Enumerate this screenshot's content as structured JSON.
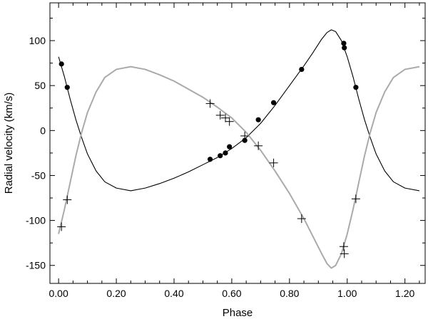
{
  "chart_data": {
    "type": "scatter",
    "xlabel": "Phase",
    "ylabel": "Radial velocity (km/s)",
    "xlim": [
      -0.03,
      1.27
    ],
    "ylim": [
      -170,
      142
    ],
    "xticks": [
      0.0,
      0.2,
      0.4,
      0.6,
      0.8,
      1.0,
      1.2
    ],
    "xtick_labels": [
      "0.00",
      "0.20",
      "0.40",
      "0.60",
      "0.80",
      "1.00",
      "1.20"
    ],
    "yticks": [
      -150,
      -100,
      -50,
      0,
      50,
      100
    ],
    "ytick_labels": [
      "-150",
      "-100",
      "-50",
      "0",
      "50",
      "100"
    ],
    "grid": false,
    "series": [
      {
        "marker": "filled-circle",
        "color": "#000000",
        "points": [
          {
            "x": 0.01,
            "y": 74
          },
          {
            "x": 0.03,
            "y": 48
          },
          {
            "x": 0.525,
            "y": -32
          },
          {
            "x": 0.56,
            "y": -28
          },
          {
            "x": 0.578,
            "y": -25
          },
          {
            "x": 0.592,
            "y": -18
          },
          {
            "x": 0.645,
            "y": -11
          },
          {
            "x": 0.692,
            "y": 12
          },
          {
            "x": 0.745,
            "y": 31
          },
          {
            "x": 0.842,
            "y": 68
          },
          {
            "x": 0.988,
            "y": 97
          },
          {
            "x": 0.99,
            "y": 92
          },
          {
            "x": 1.03,
            "y": 48
          }
        ]
      },
      {
        "marker": "plus",
        "color": "#000000",
        "points": [
          {
            "x": 0.01,
            "y": -107
          },
          {
            "x": 0.03,
            "y": -77
          },
          {
            "x": 0.525,
            "y": 30
          },
          {
            "x": 0.56,
            "y": 17
          },
          {
            "x": 0.578,
            "y": 14
          },
          {
            "x": 0.592,
            "y": 10
          },
          {
            "x": 0.645,
            "y": -6
          },
          {
            "x": 0.692,
            "y": -17
          },
          {
            "x": 0.745,
            "y": -36
          },
          {
            "x": 0.842,
            "y": -98
          },
          {
            "x": 0.988,
            "y": -129
          },
          {
            "x": 0.99,
            "y": -137
          },
          {
            "x": 1.03,
            "y": -76
          }
        ]
      }
    ],
    "curves": [
      {
        "color": "#000000",
        "points": [
          [
            0.0,
            82
          ],
          [
            0.02,
            60
          ],
          [
            0.04,
            35
          ],
          [
            0.06,
            12
          ],
          [
            0.08,
            -8
          ],
          [
            0.1,
            -26
          ],
          [
            0.13,
            -45
          ],
          [
            0.16,
            -57
          ],
          [
            0.2,
            -64
          ],
          [
            0.25,
            -67
          ],
          [
            0.3,
            -64
          ],
          [
            0.35,
            -59
          ],
          [
            0.4,
            -53
          ],
          [
            0.45,
            -46
          ],
          [
            0.5,
            -38
          ],
          [
            0.55,
            -30
          ],
          [
            0.6,
            -20
          ],
          [
            0.65,
            -8
          ],
          [
            0.7,
            8
          ],
          [
            0.75,
            28
          ],
          [
            0.8,
            50
          ],
          [
            0.85,
            72
          ],
          [
            0.88,
            86
          ],
          [
            0.91,
            101
          ],
          [
            0.93,
            109
          ],
          [
            0.945,
            112
          ],
          [
            0.96,
            110
          ],
          [
            0.98,
            100
          ],
          [
            1.0,
            82
          ],
          [
            1.02,
            60
          ],
          [
            1.04,
            35
          ],
          [
            1.06,
            12
          ],
          [
            1.08,
            -8
          ],
          [
            1.1,
            -26
          ],
          [
            1.13,
            -45
          ],
          [
            1.16,
            -57
          ],
          [
            1.2,
            -64
          ],
          [
            1.25,
            -67
          ]
        ]
      },
      {
        "color": "#aaaaaa",
        "points": [
          [
            0.0,
            -115
          ],
          [
            0.02,
            -88
          ],
          [
            0.04,
            -58
          ],
          [
            0.06,
            -28
          ],
          [
            0.08,
            -2
          ],
          [
            0.1,
            20
          ],
          [
            0.13,
            43
          ],
          [
            0.16,
            59
          ],
          [
            0.2,
            68
          ],
          [
            0.25,
            71
          ],
          [
            0.3,
            68
          ],
          [
            0.35,
            62
          ],
          [
            0.4,
            55
          ],
          [
            0.45,
            46
          ],
          [
            0.5,
            37
          ],
          [
            0.55,
            26
          ],
          [
            0.6,
            14
          ],
          [
            0.65,
            -2
          ],
          [
            0.7,
            -22
          ],
          [
            0.75,
            -45
          ],
          [
            0.8,
            -70
          ],
          [
            0.85,
            -98
          ],
          [
            0.88,
            -117
          ],
          [
            0.91,
            -136
          ],
          [
            0.93,
            -148
          ],
          [
            0.945,
            -153
          ],
          [
            0.96,
            -150
          ],
          [
            0.98,
            -137
          ],
          [
            1.0,
            -115
          ],
          [
            1.02,
            -88
          ],
          [
            1.04,
            -58
          ],
          [
            1.06,
            -28
          ],
          [
            1.08,
            -2
          ],
          [
            1.1,
            20
          ],
          [
            1.13,
            43
          ],
          [
            1.16,
            59
          ],
          [
            1.2,
            68
          ],
          [
            1.25,
            71
          ]
        ]
      }
    ]
  }
}
